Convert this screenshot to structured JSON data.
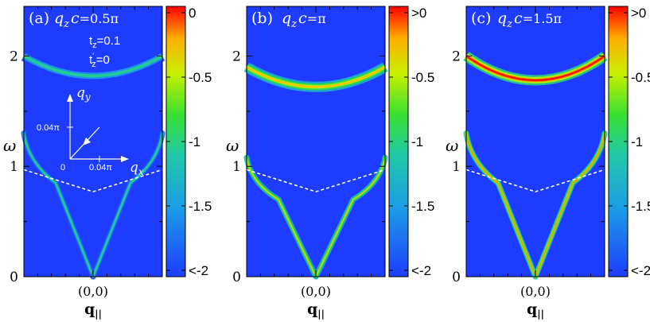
{
  "chart_data": [
    {
      "type": "heatmap",
      "panel_label": "(a)",
      "title": "q_z c =0.5π",
      "title_parts": {
        "var": "q",
        "sub": "z",
        "rest": "c",
        "value": "=0.5π"
      },
      "params": [
        "t_z=0.1",
        "t'_z=0"
      ],
      "params_text": {
        "t_z": {
          "base": "t",
          "sub": "z",
          "value": "=0.1"
        },
        "tp_z": {
          "base": "t",
          "sup": "'",
          "sub": "z",
          "value": "=0"
        }
      },
      "ylabel": "ω",
      "xlabel": "q||",
      "xlabel_parts": {
        "base": "q",
        "sub": "||"
      },
      "x_tick_label": "(0,0)",
      "yticks": [
        "0",
        "1",
        "2"
      ],
      "ylim": [
        0,
        2.45
      ],
      "xlim": [
        -0.1,
        0.1
      ],
      "colorbar": {
        "ticks": [
          "0",
          "-0.5",
          "-1",
          "-1.5",
          "<-2"
        ],
        "range": [
          -2,
          0
        ]
      },
      "upper_band": {
        "omega_at_center": 1.82,
        "omega_at_edges": 2.0,
        "peak_intensity": -1.0
      },
      "lower_branch": {
        "omega_at_edges": 1.3,
        "kink_omega": 0.85,
        "peak_intensity": -0.95
      },
      "dashed_line": {
        "omega_at_center": 0.77,
        "omega_at_edges": 0.97
      },
      "inset": {
        "axis_x": "q_x",
        "axis_y": "q_y",
        "origin": "0",
        "tick_x": "0.04π",
        "tick_y": "0.04π"
      }
    },
    {
      "type": "heatmap",
      "panel_label": "(b)",
      "title": "q_z c =π",
      "title_parts": {
        "var": "q",
        "sub": "z",
        "rest": "c",
        "value": "=π"
      },
      "ylabel": "ω",
      "xlabel": "q||",
      "xlabel_parts": {
        "base": "q",
        "sub": "||"
      },
      "x_tick_label": "(0,0)",
      "yticks": [
        "0",
        "1",
        "2"
      ],
      "ylim": [
        0,
        2.45
      ],
      "xlim": [
        -0.1,
        0.1
      ],
      "colorbar": {
        "ticks": [
          ">0",
          "-0.5",
          "-1",
          "-1.5",
          "<-2"
        ],
        "range": [
          -2,
          0
        ]
      },
      "upper_band": {
        "omega_at_center": 1.72,
        "omega_at_edges": 1.9,
        "peak_intensity": -0.3
      },
      "lower_branch": {
        "omega_at_edges": 1.08,
        "kink_omega": 0.7,
        "peak_intensity": -0.4
      },
      "dashed_line": {
        "omega_at_center": 0.77,
        "omega_at_edges": 0.97
      }
    },
    {
      "type": "heatmap",
      "panel_label": "(c)",
      "title": "q_z c =1.5π",
      "title_parts": {
        "var": "q",
        "sub": "z",
        "rest": "c",
        "value": "=1.5π"
      },
      "ylabel": "ω",
      "xlabel": "q||",
      "xlabel_parts": {
        "base": "q",
        "sub": "||"
      },
      "x_tick_label": "(0,0)",
      "yticks": [
        "0",
        "1",
        "2"
      ],
      "ylim": [
        0,
        2.45
      ],
      "xlim": [
        -0.1,
        0.1
      ],
      "colorbar": {
        "ticks": [
          ">0",
          "-0.5",
          "-1",
          "-1.5",
          "<-2"
        ],
        "range": [
          -2,
          0
        ]
      },
      "upper_band": {
        "omega_at_center": 1.78,
        "omega_at_edges": 2.0,
        "peak_intensity": 0.0
      },
      "lower_branch": {
        "omega_at_edges": 1.3,
        "kink_omega": 0.85,
        "peak_intensity": -0.2
      },
      "dashed_line": {
        "omega_at_center": 0.77,
        "omega_at_edges": 0.97
      }
    }
  ]
}
